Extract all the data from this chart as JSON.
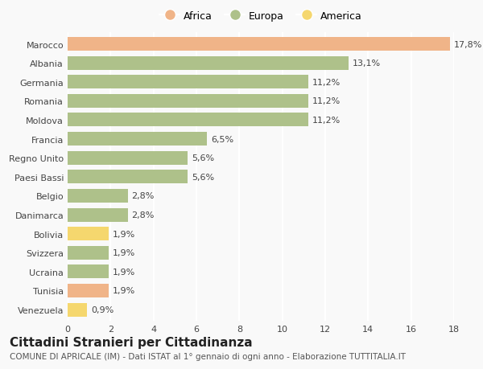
{
  "countries": [
    "Marocco",
    "Albania",
    "Germania",
    "Romania",
    "Moldova",
    "Francia",
    "Regno Unito",
    "Paesi Bassi",
    "Belgio",
    "Danimarca",
    "Bolivia",
    "Svizzera",
    "Ucraina",
    "Tunisia",
    "Venezuela"
  ],
  "values": [
    17.8,
    13.1,
    11.2,
    11.2,
    11.2,
    6.5,
    5.6,
    5.6,
    2.8,
    2.8,
    1.9,
    1.9,
    1.9,
    1.9,
    0.9
  ],
  "labels": [
    "17,8%",
    "13,1%",
    "11,2%",
    "11,2%",
    "11,2%",
    "6,5%",
    "5,6%",
    "5,6%",
    "2,8%",
    "2,8%",
    "1,9%",
    "1,9%",
    "1,9%",
    "1,9%",
    "0,9%"
  ],
  "colors": [
    "#f0b488",
    "#aec18a",
    "#aec18a",
    "#aec18a",
    "#aec18a",
    "#aec18a",
    "#aec18a",
    "#aec18a",
    "#aec18a",
    "#aec18a",
    "#f5d76e",
    "#aec18a",
    "#aec18a",
    "#f0b488",
    "#f5d76e"
  ],
  "categories": [
    "Africa",
    "Europa",
    "America"
  ],
  "legend_colors": [
    "#f0b488",
    "#aec18a",
    "#f5d76e"
  ],
  "title": "Cittadini Stranieri per Cittadinanza",
  "subtitle": "COMUNE DI APRICALE (IM) - Dati ISTAT al 1° gennaio di ogni anno - Elaborazione TUTTITALIA.IT",
  "xlim": [
    0,
    18
  ],
  "xticks": [
    0,
    2,
    4,
    6,
    8,
    10,
    12,
    14,
    16,
    18
  ],
  "background_color": "#f9f9f9",
  "grid_color": "#ffffff",
  "bar_height": 0.72,
  "title_fontsize": 11,
  "subtitle_fontsize": 7.5,
  "label_fontsize": 8,
  "tick_fontsize": 8,
  "legend_fontsize": 9
}
